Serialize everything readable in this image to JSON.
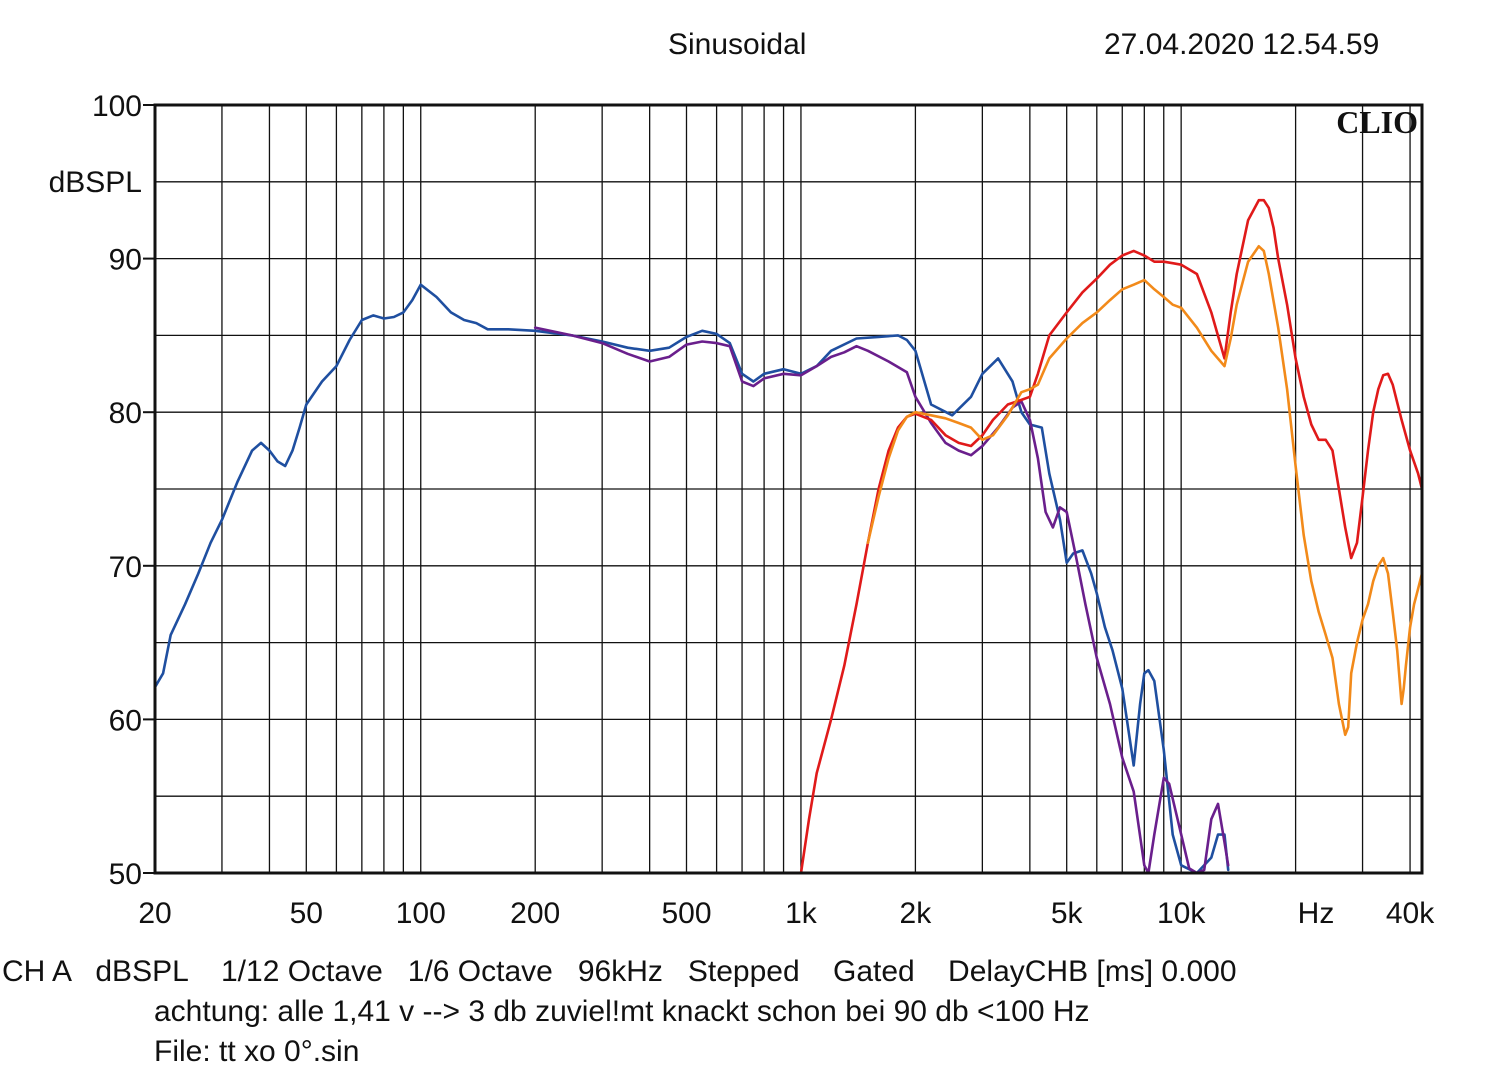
{
  "header": {
    "mode": "Sinusoidal",
    "timestamp": "27.04.2020 12.54.59"
  },
  "footer": {
    "settings_line": "CH A   dBSPL    1/12 Octave   1/6 Octave   96kHz   Stepped    Gated    DelayCHB [ms] 0.000",
    "comment_line": "achtung: alle 1,41 v --> 3 db zuviel!mt knackt schon bei 90 db <100 Hz",
    "file_line": "File: tt xo 0°.sin"
  },
  "colors": {
    "blue": "#1f4fa0",
    "purple": "#6a1f8c",
    "red": "#e01a1a",
    "orange": "#f28a1a",
    "grid": "#111111"
  },
  "chart_data": {
    "type": "line",
    "title": "",
    "logo": "CLIO",
    "ylabel": "dBSPL",
    "xlabel": "Hz",
    "x_scale": "log",
    "xlim": [
      20,
      43000
    ],
    "ylim": [
      50,
      100
    ],
    "grid": true,
    "y_ticks": [
      {
        "value": 100,
        "label": "100"
      },
      {
        "value": 90,
        "label": "90"
      },
      {
        "value": 80,
        "label": "80"
      },
      {
        "value": 70,
        "label": "70"
      },
      {
        "value": 60,
        "label": "60"
      },
      {
        "value": 50,
        "label": "50"
      }
    ],
    "x_ticks": [
      {
        "value": 20,
        "label": "20"
      },
      {
        "value": 50,
        "label": "50"
      },
      {
        "value": 100,
        "label": "100"
      },
      {
        "value": 200,
        "label": "200"
      },
      {
        "value": 500,
        "label": "500"
      },
      {
        "value": 1000,
        "label": "1k"
      },
      {
        "value": 2000,
        "label": "2k"
      },
      {
        "value": 5000,
        "label": "5k"
      },
      {
        "value": 10000,
        "label": "10k"
      },
      {
        "value": 40000,
        "label": "40k"
      }
    ],
    "series": [
      {
        "color_key": "blue",
        "x": [
          20,
          21,
          22,
          24,
          26,
          28,
          30,
          33,
          36,
          38,
          40,
          42,
          44,
          46,
          48,
          50,
          55,
          60,
          65,
          70,
          75,
          80,
          85,
          90,
          95,
          100,
          110,
          120,
          130,
          140,
          150,
          170,
          200,
          250,
          300,
          350,
          400,
          450,
          500,
          550,
          600,
          650,
          700,
          750,
          800,
          900,
          1000,
          1100,
          1200,
          1400,
          1600,
          1800,
          1900,
          2000,
          2200,
          2500,
          2800,
          3000,
          3300,
          3600,
          3800,
          4000,
          4300,
          4500,
          4800,
          5000,
          5200,
          5500,
          5800,
          6000,
          6300,
          6600,
          7000,
          7500,
          7800,
          8000,
          8200,
          8500,
          9000,
          9500,
          10000,
          11000,
          12000,
          12500,
          13000,
          13300
        ],
        "y": [
          62.1,
          63,
          65.5,
          67.5,
          69.5,
          71.5,
          73,
          75.5,
          77.5,
          78,
          77.5,
          76.8,
          76.5,
          77.5,
          79,
          80.5,
          82,
          83,
          84.7,
          86,
          86.3,
          86.1,
          86.2,
          86.5,
          87.3,
          88.3,
          87.5,
          86.5,
          86,
          85.8,
          85.4,
          85.4,
          85.3,
          85.0,
          84.6,
          84.2,
          84.0,
          84.2,
          84.9,
          85.3,
          85.1,
          84.5,
          82.5,
          82.0,
          82.5,
          82.8,
          82.5,
          83.0,
          84.0,
          84.8,
          84.9,
          85.0,
          84.7,
          84.0,
          80.5,
          79.8,
          81.0,
          82.5,
          83.5,
          82.0,
          80,
          79.2,
          79.0,
          76,
          73,
          70.2,
          70.8,
          71,
          69.5,
          68.2,
          66,
          64.5,
          62,
          57,
          61,
          63,
          63.2,
          62.5,
          58,
          52.5,
          50.5,
          50,
          51,
          52.5,
          52.5,
          50.2
        ]
      },
      {
        "color_key": "purple",
        "x": [
          200,
          250,
          300,
          350,
          400,
          450,
          500,
          550,
          600,
          650,
          700,
          750,
          800,
          900,
          1000,
          1100,
          1200,
          1300,
          1400,
          1500,
          1700,
          1900,
          2000,
          2200,
          2400,
          2600,
          2800,
          3000,
          3300,
          3600,
          3800,
          4000,
          4200,
          4400,
          4600,
          4800,
          5000,
          5300,
          5600,
          6000,
          6500,
          7000,
          7500,
          8000,
          8200,
          8500,
          9000,
          9300,
          10000,
          10500,
          11000,
          11500,
          12000,
          12500,
          13000,
          13300
        ],
        "y": [
          85.5,
          85.0,
          84.5,
          83.8,
          83.3,
          83.6,
          84.4,
          84.6,
          84.5,
          84.3,
          82.0,
          81.7,
          82.2,
          82.5,
          82.4,
          83.0,
          83.6,
          83.9,
          84.3,
          84.0,
          83.3,
          82.6,
          81.0,
          79.3,
          78.0,
          77.5,
          77.2,
          77.8,
          79.0,
          80.3,
          80.7,
          79.5,
          77.0,
          73.5,
          72.5,
          73.8,
          73.5,
          70.5,
          67.5,
          64.0,
          61.0,
          57.5,
          55.3,
          50.5,
          50.0,
          52.5,
          56.2,
          55.8,
          52.5,
          50.3,
          50,
          50.2,
          53.5,
          54.5,
          52.0,
          50.5
        ]
      },
      {
        "color_key": "red",
        "x": [
          1000,
          1050,
          1100,
          1200,
          1300,
          1400,
          1500,
          1600,
          1700,
          1800,
          1900,
          2000,
          2200,
          2400,
          2600,
          2800,
          3000,
          3200,
          3500,
          3800,
          4000,
          4200,
          4500,
          5000,
          5500,
          6000,
          6500,
          7000,
          7500,
          8000,
          8500,
          9000,
          9500,
          10000,
          11000,
          12000,
          13000,
          13500,
          14000,
          15000,
          16000,
          16500,
          17000,
          17500,
          18000,
          19000,
          20000,
          21000,
          22000,
          23000,
          24000,
          25000,
          26000,
          27000,
          28000,
          29000,
          30000,
          31000,
          32000,
          33000,
          34000,
          35000,
          36000,
          38000,
          40000,
          42000,
          43000
        ],
        "y": [
          50,
          53.5,
          56.5,
          60,
          63.5,
          67.5,
          71.5,
          75,
          77.5,
          79,
          79.7,
          79.9,
          79.5,
          78.5,
          78,
          77.8,
          78.5,
          79.5,
          80.5,
          80.8,
          81.0,
          82.5,
          85.0,
          86.5,
          87.8,
          88.7,
          89.6,
          90.2,
          90.5,
          90.2,
          89.8,
          89.8,
          89.7,
          89.6,
          89.0,
          86.5,
          83.5,
          86.5,
          89.0,
          92.5,
          93.8,
          93.8,
          93.3,
          92.0,
          90.0,
          87.0,
          83.5,
          81.0,
          79.2,
          78.2,
          78.2,
          77.5,
          75.0,
          72.5,
          70.5,
          71.5,
          74.5,
          77.5,
          80.0,
          81.5,
          82.4,
          82.5,
          81.8,
          79.5,
          77.5,
          76.0,
          75.0
        ]
      },
      {
        "color_key": "orange",
        "x": [
          1500,
          1600,
          1700,
          1800,
          1900,
          2000,
          2200,
          2400,
          2600,
          2800,
          3000,
          3200,
          3500,
          3800,
          4000,
          4200,
          4500,
          5000,
          5500,
          6000,
          6500,
          7000,
          7500,
          8000,
          8500,
          9000,
          9500,
          10000,
          11000,
          12000,
          13000,
          13500,
          14000,
          15000,
          16000,
          16500,
          17000,
          18000,
          19000,
          20000,
          21000,
          22000,
          23000,
          24000,
          25000,
          26000,
          27000,
          27500,
          28000,
          29000,
          30000,
          31000,
          32000,
          33000,
          34000,
          35000,
          36000,
          37000,
          38000,
          38500,
          39000,
          40000,
          41000,
          42000,
          43000
        ],
        "y": [
          71.5,
          74.5,
          77,
          78.8,
          79.7,
          80.0,
          79.8,
          79.6,
          79.3,
          79.0,
          78.2,
          78.5,
          79.8,
          81.3,
          81.5,
          81.8,
          83.5,
          84.8,
          85.8,
          86.5,
          87.3,
          88.0,
          88.3,
          88.6,
          88.0,
          87.5,
          87.0,
          86.8,
          85.5,
          84.0,
          83.0,
          84.8,
          87.0,
          89.8,
          90.8,
          90.5,
          89.0,
          85.5,
          81.5,
          76.5,
          72.0,
          69.0,
          67.0,
          65.5,
          64.0,
          61.0,
          59.0,
          59.5,
          63.0,
          65.0,
          66.5,
          67.5,
          69.0,
          70.0,
          70.5,
          69.5,
          67.0,
          64.5,
          61.0,
          62.0,
          63.5,
          66.0,
          67.5,
          68.5,
          69.5
        ]
      }
    ]
  }
}
